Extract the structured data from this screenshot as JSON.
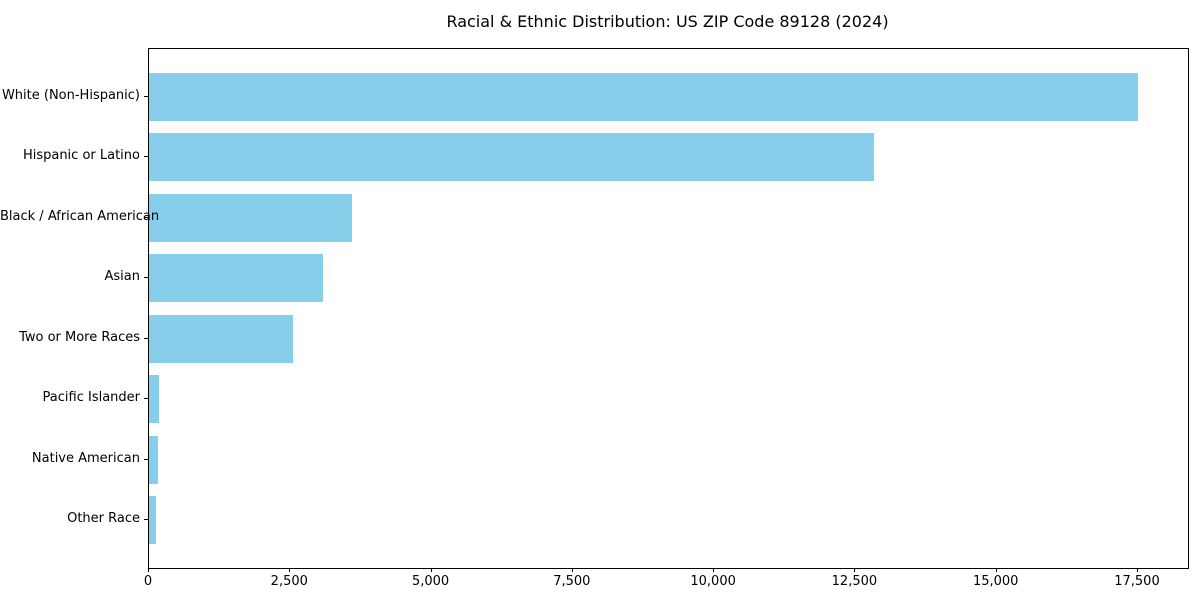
{
  "chart_data": {
    "type": "bar",
    "orientation": "horizontal",
    "title": "Racial & Ethnic Distribution: US ZIP Code 89128 (2024)",
    "categories": [
      "White (Non-Hispanic)",
      "Hispanic or Latino",
      "Black / African American",
      "Asian",
      "Two or More Races",
      "Pacific Islander",
      "Native American",
      "Other Race"
    ],
    "values": [
      17500,
      12830,
      3590,
      3080,
      2550,
      170,
      160,
      130
    ],
    "xlabel": "",
    "ylabel": "",
    "xlim": [
      0,
      18385
    ],
    "xticks": {
      "values": [
        0,
        2500,
        5000,
        7500,
        10000,
        12500,
        15000,
        17500
      ],
      "labels": [
        "0",
        "2,500",
        "5,000",
        "7,500",
        "10,000",
        "12,500",
        "15,000",
        "17,500"
      ]
    },
    "grid": false,
    "legend": null,
    "bar_color": "#87CEEB",
    "axis_color": "#000000",
    "text_color": "#000000",
    "background_color": "#ffffff"
  }
}
